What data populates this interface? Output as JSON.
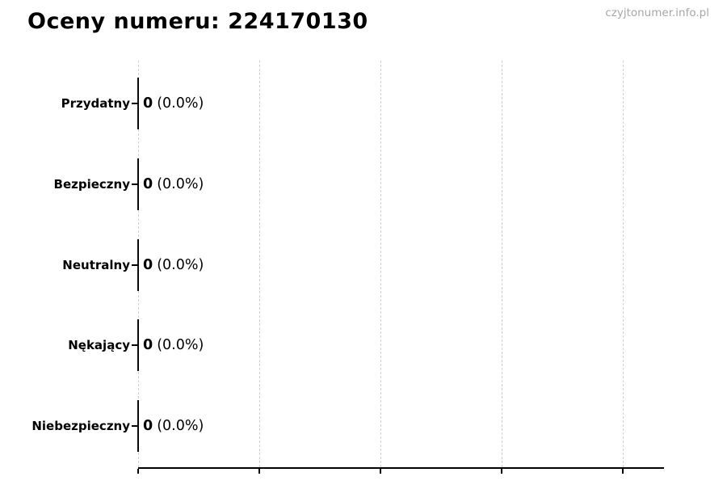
{
  "watermark": "czyjtonumer.info.pl",
  "chart_data": {
    "type": "bar",
    "orientation": "horizontal",
    "title": "Oceny numeru: 224170130",
    "categories": [
      "Przydatny",
      "Bezpieczny",
      "Neutralny",
      "Nękający",
      "Niebezpieczny"
    ],
    "values": [
      0,
      0,
      0,
      0,
      0
    ],
    "counts": [
      "0",
      "0",
      "0",
      "0",
      "0"
    ],
    "percents": [
      "(0.0%)",
      "(0.0%)",
      "(0.0%)",
      "(0.0%)",
      "(0.0%)"
    ],
    "xlabel": "",
    "ylabel": "",
    "x_tick_labels": [],
    "grid": "vertical dashed gridlines at 5 positions",
    "legend": "none",
    "bar_color": "#0a0a0a",
    "axis_color": "#000000",
    "gridline_color": "#cfcfcf",
    "watermark_color": "#a6a6a6"
  }
}
